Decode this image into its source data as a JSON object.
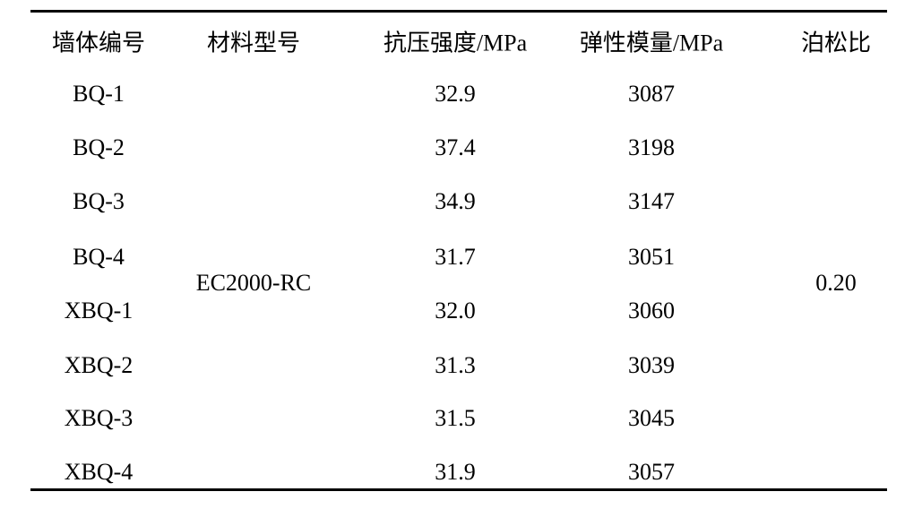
{
  "table": {
    "header": [
      "墙体编号",
      "材料型号",
      "抗压强度/MPa",
      "弹性模量/MPa",
      "泊松比"
    ],
    "rows": [
      [
        "BQ-1",
        "32.9",
        "3087"
      ],
      [
        "BQ-2",
        "37.4",
        "3198"
      ],
      [
        "BQ-3",
        "34.9",
        "3147"
      ],
      [
        "BQ-4",
        "31.7",
        "3051"
      ],
      [
        "XBQ-1",
        "32.0",
        "3060"
      ],
      [
        "XBQ-2",
        "31.3",
        "3039"
      ],
      [
        "XBQ-3",
        "31.5",
        "3045"
      ],
      [
        "XBQ-4",
        "31.9",
        "3057"
      ]
    ],
    "material": "EC2000-RC",
    "poisson_ratio": "0.20"
  }
}
